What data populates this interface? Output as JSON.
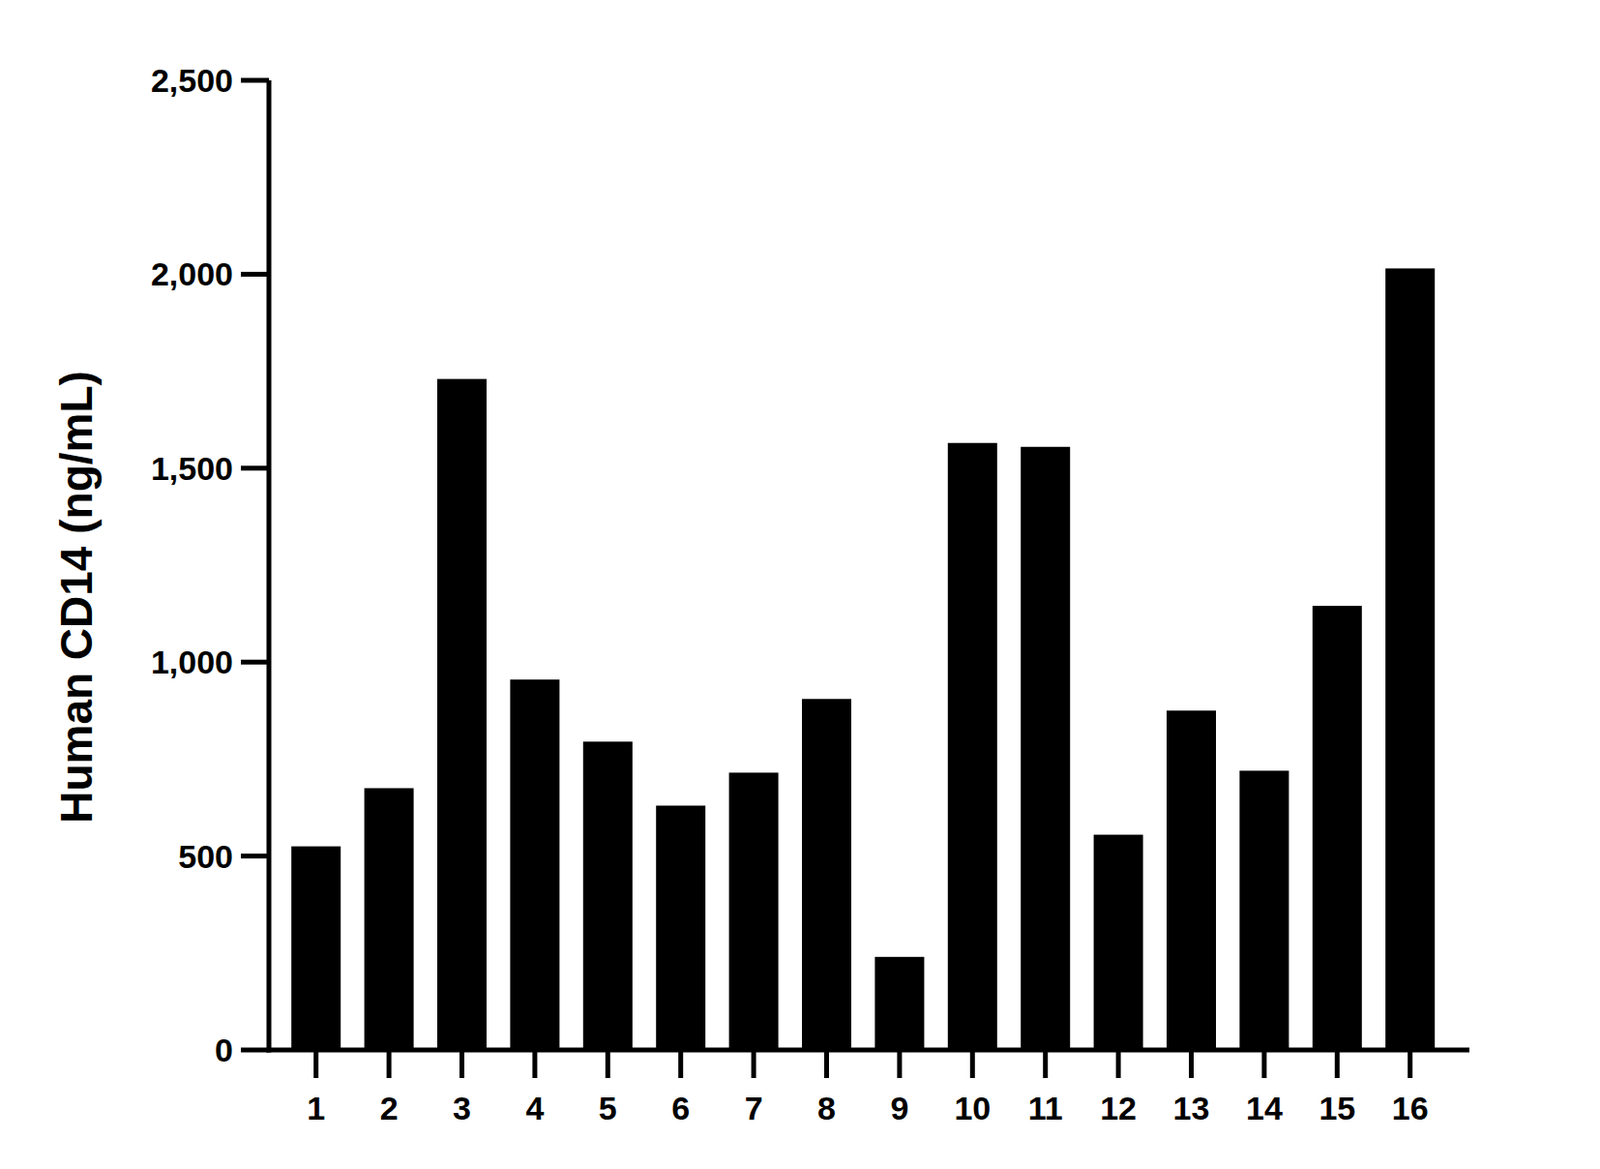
{
  "chart_data": {
    "type": "bar",
    "y_label": "Human CD14 (ng/mL)",
    "categories": [
      "1",
      "2",
      "3",
      "4",
      "5",
      "6",
      "7",
      "8",
      "9",
      "10",
      "11",
      "12",
      "13",
      "14",
      "15",
      "16"
    ],
    "values": [
      525,
      675,
      1730,
      955,
      795,
      630,
      715,
      905,
      240,
      1565,
      1555,
      555,
      875,
      720,
      1145,
      2015
    ],
    "color": "#000000",
    "ylim": [
      0,
      2500
    ],
    "yticks": [
      0,
      500,
      {
        "value": 1000,
        "label": "1,000"
      },
      {
        "value": 1500,
        "label": "1,500"
      },
      {
        "value": 2000,
        "label": "2,000"
      },
      {
        "value": 2500,
        "label": "2,500"
      }
    ],
    "grid": false
  }
}
